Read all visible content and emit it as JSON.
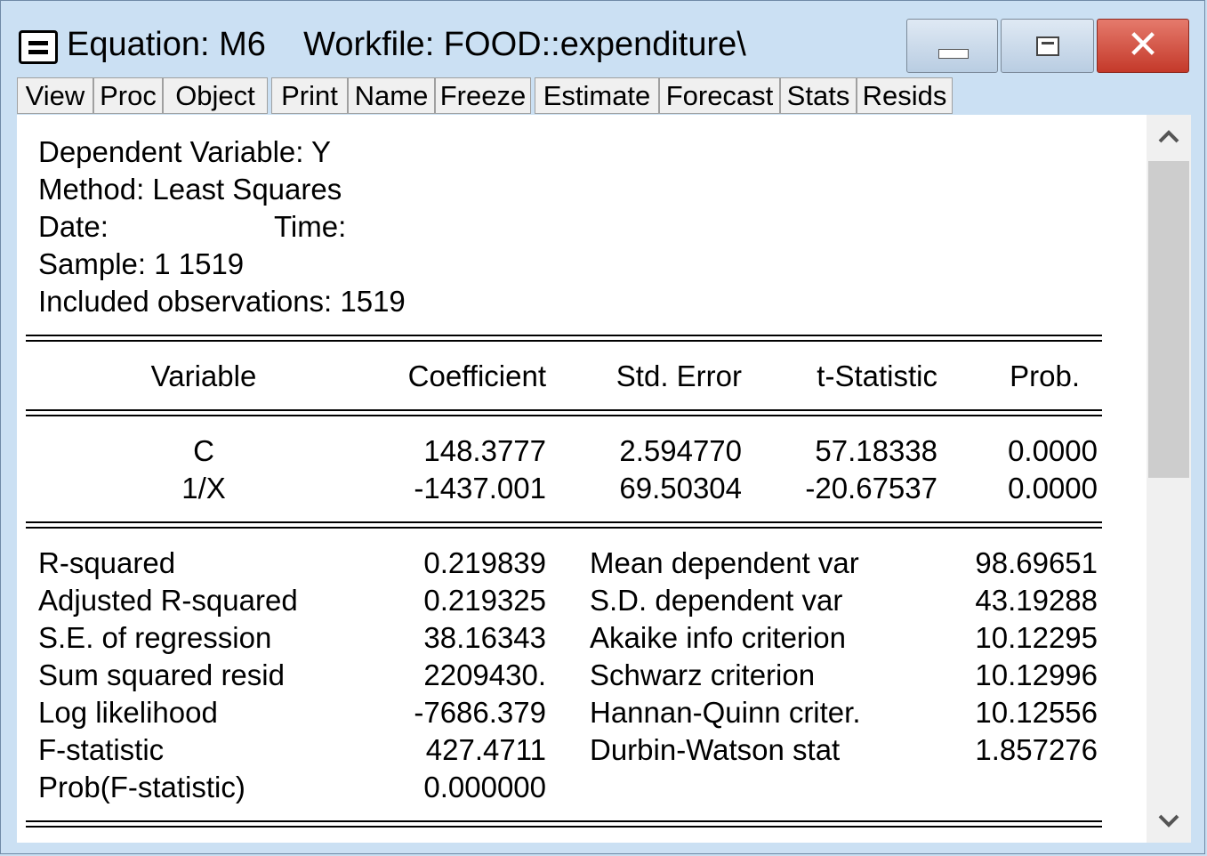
{
  "window": {
    "title": "Equation: M6    Workfile: FOOD::expenditure\\"
  },
  "toolbar": [
    "View",
    "Proc",
    "Object",
    "Print",
    "Name",
    "Freeze",
    "Estimate",
    "Forecast",
    "Stats",
    "Resids"
  ],
  "header": {
    "dependent": "Dependent Variable: Y",
    "method": "Method: Least Squares",
    "date_label": "Date:",
    "time_label": "Time:",
    "sample": "Sample: 1 1519",
    "obs": "Included observations: 1519"
  },
  "table": {
    "columns": [
      "Variable",
      "Coefficient",
      "Std. Error",
      "t-Statistic",
      "Prob."
    ],
    "rows": [
      [
        "C",
        "148.3777",
        "2.594770",
        "57.18338",
        "0.0000"
      ],
      [
        "1/X",
        "-1437.001",
        "69.50304",
        "-20.67537",
        "0.0000"
      ]
    ]
  },
  "stats": {
    "left": [
      [
        "R-squared",
        "0.219839"
      ],
      [
        "Adjusted R-squared",
        "0.219325"
      ],
      [
        "S.E. of regression",
        "38.16343"
      ],
      [
        "Sum squared resid",
        "2209430."
      ],
      [
        "Log likelihood",
        "-7686.379"
      ],
      [
        "F-statistic",
        "427.4711"
      ],
      [
        "Prob(F-statistic)",
        "0.000000"
      ]
    ],
    "right": [
      [
        "Mean dependent var",
        "98.69651"
      ],
      [
        "S.D. dependent var",
        "43.19288"
      ],
      [
        "Akaike info criterion",
        "10.12295"
      ],
      [
        "Schwarz criterion",
        "10.12996"
      ],
      [
        "Hannan-Quinn criter.",
        "10.12556"
      ],
      [
        "Durbin-Watson stat",
        "1.857276"
      ]
    ]
  },
  "icons": {
    "system": "window-menu-icon",
    "minimize": "minimize-icon",
    "maximize": "maximize-icon",
    "close": "close-icon",
    "scroll_up": "chevron-up-icon",
    "scroll_down": "chevron-down-icon"
  },
  "colors": {
    "frame": "#cbe0f3",
    "close_button": "#c4392a"
  }
}
